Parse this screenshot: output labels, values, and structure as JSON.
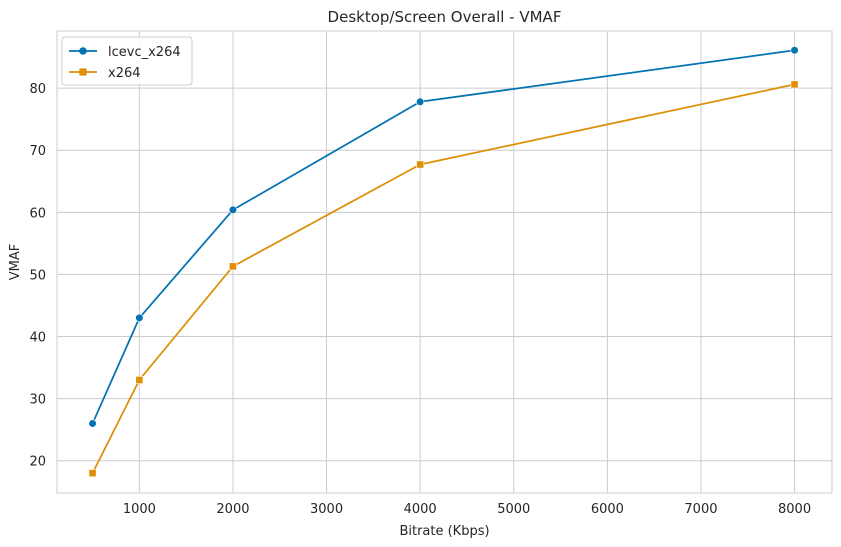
{
  "chart_data": {
    "type": "line",
    "title": "Desktop/Screen Overall - VMAF",
    "xlabel": "Bitrate (Kbps)",
    "ylabel": "VMAF",
    "xlim": [
      120,
      8400
    ],
    "ylim": [
      14.8,
      89.2
    ],
    "xticks": [
      1000,
      2000,
      3000,
      4000,
      5000,
      6000,
      7000,
      8000
    ],
    "yticks": [
      20,
      30,
      40,
      50,
      60,
      70,
      80
    ],
    "grid": true,
    "legend_position": "top-left",
    "series": [
      {
        "name": "lcevc_x264",
        "color": "#0173b2",
        "marker": "circle",
        "x": [
          500,
          1000,
          2000,
          4000,
          8000
        ],
        "y": [
          26.0,
          43.0,
          60.4,
          77.8,
          86.1
        ]
      },
      {
        "name": "x264",
        "color": "#de8f05",
        "marker": "square",
        "x": [
          500,
          1000,
          2000,
          4000,
          8000
        ],
        "y": [
          18.0,
          33.0,
          51.3,
          67.7,
          80.6
        ]
      }
    ]
  }
}
